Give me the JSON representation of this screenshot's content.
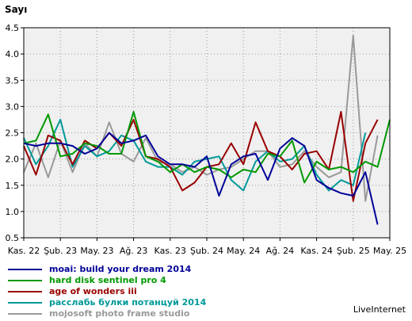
{
  "chart_data": {
    "type": "line",
    "title": "",
    "ylabel": "Sayı",
    "xlabel": "",
    "ylim": [
      0.5,
      4.5
    ],
    "yticks": [
      "0.5",
      "1.0",
      "1.5",
      "2.0",
      "2.5",
      "3.0",
      "3.5",
      "4.0",
      "4.5"
    ],
    "x_tick_labels": [
      "Kas. 22",
      "Şub. 23",
      "May. 23",
      "Ağ. 23",
      "Kas. 23",
      "Şub. 24",
      "May. 24",
      "Ağ. 24",
      "Kas. 24",
      "Şub. 25",
      "May. 25"
    ],
    "x_tick_index": [
      0,
      3,
      6,
      9,
      12,
      15,
      18,
      21,
      24,
      27,
      30
    ],
    "grid": true,
    "legend_position": "bottom-left",
    "series": [
      {
        "name": "moai: build your dream 2014",
        "color": "#000099",
        "values": [
          2.3,
          2.25,
          2.3,
          2.3,
          2.25,
          2.1,
          2.2,
          2.5,
          2.3,
          2.35,
          2.45,
          2.05,
          1.9,
          1.9,
          1.85,
          2.05,
          1.3,
          1.9,
          2.05,
          2.1,
          1.6,
          2.2,
          2.4,
          2.25,
          1.6,
          1.45,
          1.35,
          1.3,
          1.75,
          0.75
        ]
      },
      {
        "name": "hard disk sentinel pro 4",
        "color": "#009900",
        "values": [
          2.3,
          2.35,
          2.85,
          2.05,
          2.1,
          2.3,
          2.25,
          2.1,
          2.1,
          2.9,
          2.05,
          1.95,
          1.75,
          1.9,
          1.75,
          1.85,
          1.8,
          1.65,
          1.8,
          1.75,
          2.1,
          2.05,
          2.35,
          1.55,
          1.95,
          1.8,
          1.85,
          1.75,
          1.95,
          1.85,
          2.75
        ]
      },
      {
        "name": "age of wonders iii",
        "color": "#990000",
        "values": [
          2.25,
          1.7,
          2.45,
          2.35,
          1.9,
          2.35,
          2.2,
          2.5,
          2.25,
          2.75,
          2.05,
          2.0,
          1.85,
          1.4,
          1.55,
          1.85,
          1.9,
          2.3,
          1.9,
          2.7,
          2.15,
          2.05,
          1.8,
          2.1,
          2.15,
          1.8,
          2.9,
          1.2,
          2.3,
          2.75
        ]
      },
      {
        "name": "расслабь булки потанцуй 2014",
        "color": "#009999",
        "values": [
          2.4,
          1.9,
          2.25,
          2.75,
          1.85,
          2.25,
          2.05,
          2.15,
          2.45,
          2.35,
          1.95,
          1.85,
          1.85,
          1.7,
          1.95,
          2.0,
          2.05,
          1.6,
          1.4,
          1.95,
          2.15,
          1.95,
          2.0,
          2.25,
          1.7,
          1.4,
          1.6,
          1.5,
          2.5
        ]
      },
      {
        "name": "mojosoft photo frame studio",
        "color": "#999999",
        "values": [
          1.75,
          2.3,
          1.65,
          2.35,
          1.75,
          2.3,
          2.05,
          2.7,
          2.1,
          1.95,
          2.4,
          1.95,
          1.9,
          1.75,
          1.85,
          1.7,
          1.8,
          1.85,
          2.0,
          2.15,
          2.15,
          1.85,
          1.9,
          2.15,
          1.85,
          1.65,
          1.75,
          4.35,
          1.2,
          2.45
        ]
      }
    ]
  },
  "legend": {
    "items": [
      {
        "label": "moai: build your dream 2014",
        "color": "#000099"
      },
      {
        "label": "hard disk sentinel pro 4",
        "color": "#009900"
      },
      {
        "label": "age of wonders iii",
        "color": "#990000"
      },
      {
        "label": "расслабь булки потанцуй 2014",
        "color": "#009999"
      },
      {
        "label": "mojosoft photo frame studio",
        "color": "#999999"
      }
    ]
  },
  "footer": {
    "brand": "LiveInternet"
  }
}
